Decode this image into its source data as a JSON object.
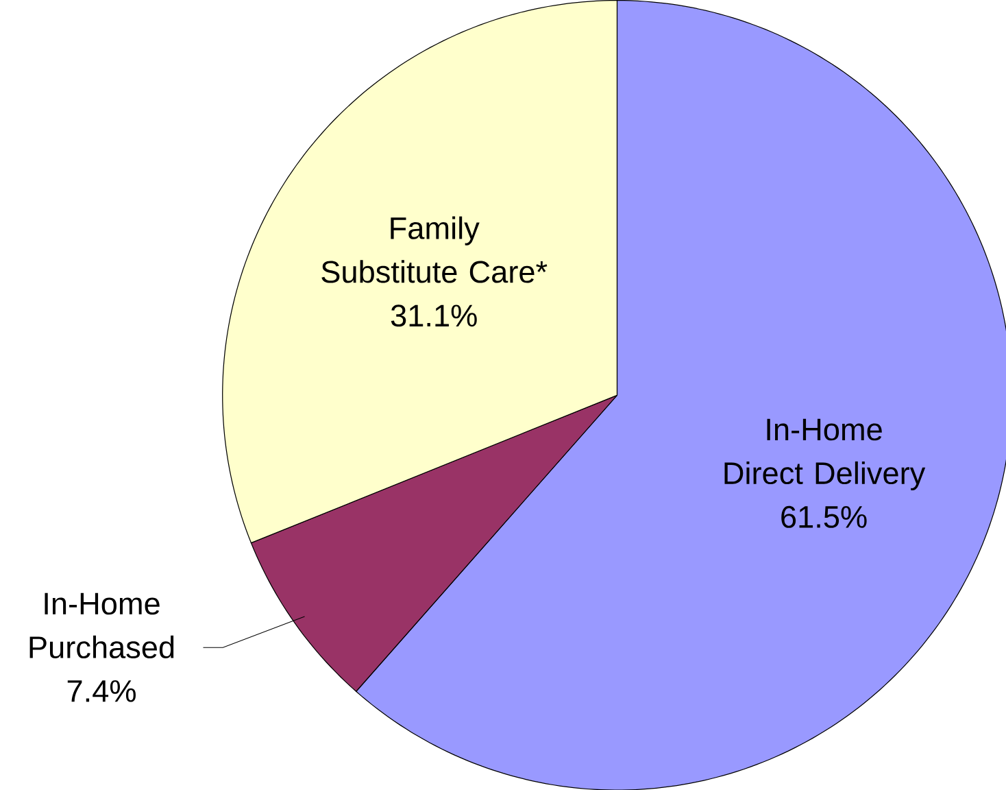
{
  "chart_data": {
    "type": "pie",
    "categories": [
      "In-Home Direct Delivery",
      "In-Home Purchased",
      "Family Substitute Care*"
    ],
    "values": [
      61.5,
      7.4,
      31.1
    ],
    "colors": [
      "#9999ff",
      "#993366",
      "#ffffcc"
    ],
    "value_labels": [
      "61.5%",
      "7.4%",
      "31.1%"
    ]
  }
}
